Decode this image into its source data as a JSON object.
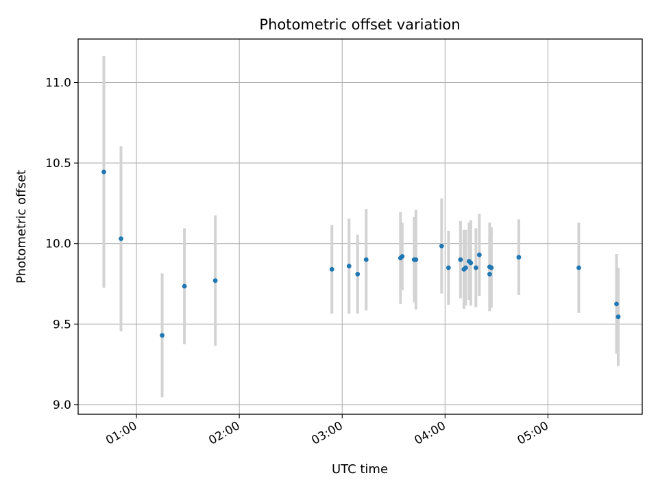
{
  "chart_data": {
    "type": "scatter",
    "title": "Photometric offset variation",
    "xlabel": "UTC time",
    "ylabel": "Photometric offset",
    "xlim": [
      "00:26",
      "05:55"
    ],
    "ylim": [
      8.94,
      11.27
    ],
    "grid": true,
    "x_ticks": [
      "01:00",
      "02:00",
      "03:00",
      "04:00",
      "05:00"
    ],
    "y_ticks": [
      "9.0",
      "9.5",
      "10.0",
      "10.5",
      "11.0"
    ],
    "colors": {
      "marker": "#1f77b4",
      "errorbar": "#d3d3d3",
      "grid": "#b0b0b0"
    },
    "series": [
      {
        "points": [
          {
            "x": "00:41",
            "y": 10.445,
            "err": 0.72
          },
          {
            "x": "00:51",
            "y": 10.03,
            "err": 0.575
          },
          {
            "x": "01:15",
            "y": 9.43,
            "err": 0.385
          },
          {
            "x": "01:28",
            "y": 9.735,
            "err": 0.36
          },
          {
            "x": "01:46",
            "y": 9.77,
            "err": 0.405
          },
          {
            "x": "02:54",
            "y": 9.84,
            "err": 0.275
          },
          {
            "x": "03:04",
            "y": 9.86,
            "err": 0.295
          },
          {
            "x": "03:09",
            "y": 9.81,
            "err": 0.245
          },
          {
            "x": "03:14",
            "y": 9.9,
            "err": 0.315
          },
          {
            "x": "03:34",
            "y": 9.91,
            "err": 0.285
          },
          {
            "x": "03:35",
            "y": 9.92,
            "err": 0.21
          },
          {
            "x": "03:42",
            "y": 9.9,
            "err": 0.265
          },
          {
            "x": "03:43",
            "y": 9.9,
            "err": 0.31
          },
          {
            "x": "03:58",
            "y": 9.985,
            "err": 0.295
          },
          {
            "x": "04:02",
            "y": 9.85,
            "err": 0.23
          },
          {
            "x": "04:09",
            "y": 9.9,
            "err": 0.24
          },
          {
            "x": "04:11",
            "y": 9.84,
            "err": 0.245
          },
          {
            "x": "04:12",
            "y": 9.85,
            "err": 0.235
          },
          {
            "x": "04:14",
            "y": 9.89,
            "err": 0.24
          },
          {
            "x": "04:15",
            "y": 9.88,
            "err": 0.265
          },
          {
            "x": "04:18",
            "y": 9.85,
            "err": 0.245
          },
          {
            "x": "04:20",
            "y": 9.93,
            "err": 0.255
          },
          {
            "x": "04:26",
            "y": 9.81,
            "err": 0.23
          },
          {
            "x": "04:26",
            "y": 9.855,
            "err": 0.275
          },
          {
            "x": "04:27",
            "y": 9.85,
            "err": 0.25
          },
          {
            "x": "04:43",
            "y": 9.915,
            "err": 0.235
          },
          {
            "x": "05:18",
            "y": 9.85,
            "err": 0.28
          },
          {
            "x": "05:40",
            "y": 9.625,
            "err": 0.31
          },
          {
            "x": "05:41",
            "y": 9.545,
            "err": 0.305
          }
        ]
      }
    ]
  }
}
